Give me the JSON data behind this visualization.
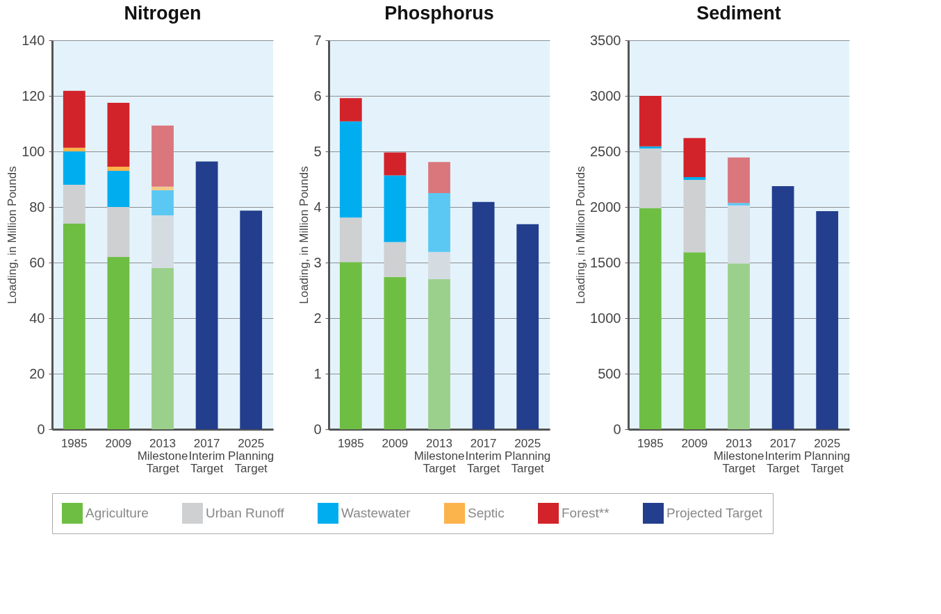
{
  "chart_data": [
    {
      "type": "bar",
      "title": "Nitrogen",
      "ylabel": "Loading, in Million Pounds",
      "stacked": true,
      "grid": "y",
      "legend": "bottom",
      "categories": [
        "1985",
        "2009",
        "2013\nMilestone\nTarget",
        "2017\nInterim\nTarget",
        "2025\nPlanning\nTarget"
      ],
      "ylim": [
        0,
        140
      ],
      "yticks": [
        0,
        20,
        40,
        60,
        80,
        100,
        120,
        140
      ],
      "series": [
        {
          "name": "Agriculture",
          "color": "#6fbe44",
          "colors": [
            "#6fbe44",
            "#6fbe44",
            "#9ad08b",
            null,
            null
          ],
          "values": [
            74,
            62,
            58,
            null,
            null
          ]
        },
        {
          "name": "Urban Runoff",
          "color": "#cfd0d2",
          "colors": [
            "#cfd0d2",
            "#cfd0d2",
            "#d4dbe1",
            null,
            null
          ],
          "values": [
            14,
            18,
            19,
            null,
            null
          ]
        },
        {
          "name": "Wastewater",
          "color": "#00aeef",
          "colors": [
            "#00aeef",
            "#00aeef",
            "#5bc8f3",
            null,
            null
          ],
          "values": [
            12,
            13,
            9,
            null,
            null
          ]
        },
        {
          "name": "Septic",
          "color": "#fbb34c",
          "colors": [
            "#fbb34c",
            "#fbb34c",
            "#f5c98a",
            null,
            null
          ],
          "values": [
            1.3,
            1.5,
            1.3,
            null,
            null
          ]
        },
        {
          "name": "Forest**",
          "color": "#d2232a",
          "colors": [
            "#d2232a",
            "#d2232a",
            "#d9777d",
            null,
            null
          ],
          "values": [
            20.5,
            23,
            22,
            null,
            null
          ]
        },
        {
          "name": "Projected Target",
          "color": "#243e8e",
          "values": [
            null,
            null,
            null,
            96.4,
            78.7
          ]
        }
      ]
    },
    {
      "type": "bar",
      "title": "Phosphorus",
      "ylabel": "Loading, in Million Pounds",
      "stacked": true,
      "grid": "y",
      "legend": "bottom",
      "categories": [
        "1985",
        "2009",
        "2013\nMilestone\nTarget",
        "2017\nInterim\nTarget",
        "2025\nPlanning\nTarget"
      ],
      "ylim": [
        0,
        7
      ],
      "yticks": [
        0,
        1,
        2,
        3,
        4,
        5,
        6,
        7
      ],
      "series": [
        {
          "name": "Agriculture",
          "color": "#6fbe44",
          "colors": [
            "#6fbe44",
            "#6fbe44",
            "#9ad08b",
            null,
            null
          ],
          "values": [
            3.01,
            2.74,
            2.7,
            null,
            null
          ]
        },
        {
          "name": "Urban Runoff",
          "color": "#cfd0d2",
          "colors": [
            "#cfd0d2",
            "#cfd0d2",
            "#d4dbe1",
            null,
            null
          ],
          "values": [
            0.8,
            0.63,
            0.49,
            null,
            null
          ]
        },
        {
          "name": "Wastewater",
          "color": "#00aeef",
          "colors": [
            "#00aeef",
            "#00aeef",
            "#5bc8f3",
            null,
            null
          ],
          "values": [
            1.73,
            1.2,
            1.06,
            null,
            null
          ]
        },
        {
          "name": "Forest**",
          "color": "#d2232a",
          "colors": [
            "#d2232a",
            "#d2232a",
            "#d9777d",
            null,
            null
          ],
          "values": [
            0.42,
            0.41,
            0.56,
            null,
            null
          ]
        },
        {
          "name": "Projected Target",
          "color": "#243e8e",
          "values": [
            null,
            null,
            null,
            4.09,
            3.69
          ]
        }
      ]
    },
    {
      "type": "bar",
      "title": "Sediment",
      "ylabel": "Loading, in Million Pounds",
      "stacked": true,
      "grid": "y",
      "legend": "bottom",
      "categories": [
        "1985",
        "2009",
        "2013\nMilestone\nTarget",
        "2017\nInterim\nTarget",
        "2025\nPlanning\nTarget"
      ],
      "ylim": [
        0,
        3500
      ],
      "yticks": [
        0,
        500,
        1000,
        1500,
        2000,
        2500,
        3000,
        3500
      ],
      "series": [
        {
          "name": "Agriculture",
          "color": "#6fbe44",
          "colors": [
            "#6fbe44",
            "#6fbe44",
            "#9ad08b",
            null,
            null
          ],
          "values": [
            1990,
            1592,
            1492,
            null,
            null
          ]
        },
        {
          "name": "Urban Runoff",
          "color": "#cfd0d2",
          "colors": [
            "#cfd0d2",
            "#cfd0d2",
            "#d4dbe1",
            null,
            null
          ],
          "values": [
            537,
            651,
            522,
            null,
            null
          ]
        },
        {
          "name": "Wastewater",
          "color": "#00aeef",
          "colors": [
            "#00aeef",
            "#00aeef",
            "#5bc8f3",
            null,
            null
          ],
          "values": [
            18,
            25,
            22,
            null,
            null
          ]
        },
        {
          "name": "Forest**",
          "color": "#d2232a",
          "colors": [
            "#d2232a",
            "#d2232a",
            "#d9777d",
            null,
            null
          ],
          "values": [
            455,
            352,
            410,
            null,
            null
          ]
        },
        {
          "name": "Projected Target",
          "color": "#243e8e",
          "values": [
            null,
            null,
            null,
            2188,
            1963
          ]
        }
      ]
    }
  ]
}
